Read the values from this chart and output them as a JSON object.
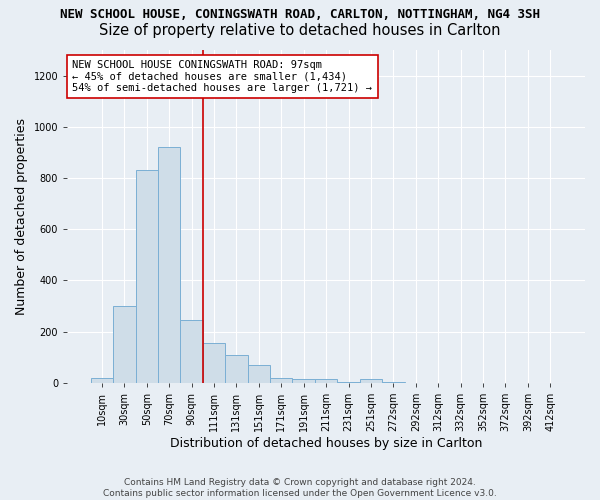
{
  "title": "NEW SCHOOL HOUSE, CONINGSWATH ROAD, CARLTON, NOTTINGHAM, NG4 3SH",
  "subtitle": "Size of property relative to detached houses in Carlton",
  "xlabel": "Distribution of detached houses by size in Carlton",
  "ylabel": "Number of detached properties",
  "bin_labels": [
    "10sqm",
    "30sqm",
    "50sqm",
    "70sqm",
    "90sqm",
    "111sqm",
    "131sqm",
    "151sqm",
    "171sqm",
    "191sqm",
    "211sqm",
    "231sqm",
    "251sqm",
    "272sqm",
    "292sqm",
    "312sqm",
    "332sqm",
    "352sqm",
    "372sqm",
    "392sqm",
    "412sqm"
  ],
  "bin_values": [
    20,
    300,
    830,
    920,
    245,
    155,
    110,
    70,
    20,
    15,
    15,
    5,
    15,
    5,
    0,
    0,
    0,
    0,
    0,
    0,
    0
  ],
  "bar_color": "#cfdde8",
  "bar_edge_color": "#7bafd4",
  "vline_color": "#cc0000",
  "vline_index": 4.5,
  "annotation_text": "NEW SCHOOL HOUSE CONINGSWATH ROAD: 97sqm\n← 45% of detached houses are smaller (1,434)\n54% of semi-detached houses are larger (1,721) →",
  "annotation_box_facecolor": "white",
  "annotation_box_edgecolor": "#cc0000",
  "ylim": [
    0,
    1300
  ],
  "yticks": [
    0,
    200,
    400,
    600,
    800,
    1000,
    1200
  ],
  "background_color": "#e8eef4",
  "grid_color": "white",
  "title_fontsize": 9,
  "subtitle_fontsize": 10.5,
  "axis_label_fontsize": 9,
  "tick_fontsize": 7,
  "annotation_fontsize": 7.5,
  "footer": "Contains HM Land Registry data © Crown copyright and database right 2024.\nContains public sector information licensed under the Open Government Licence v3.0.",
  "footer_fontsize": 6.5,
  "footer_color": "#444444"
}
